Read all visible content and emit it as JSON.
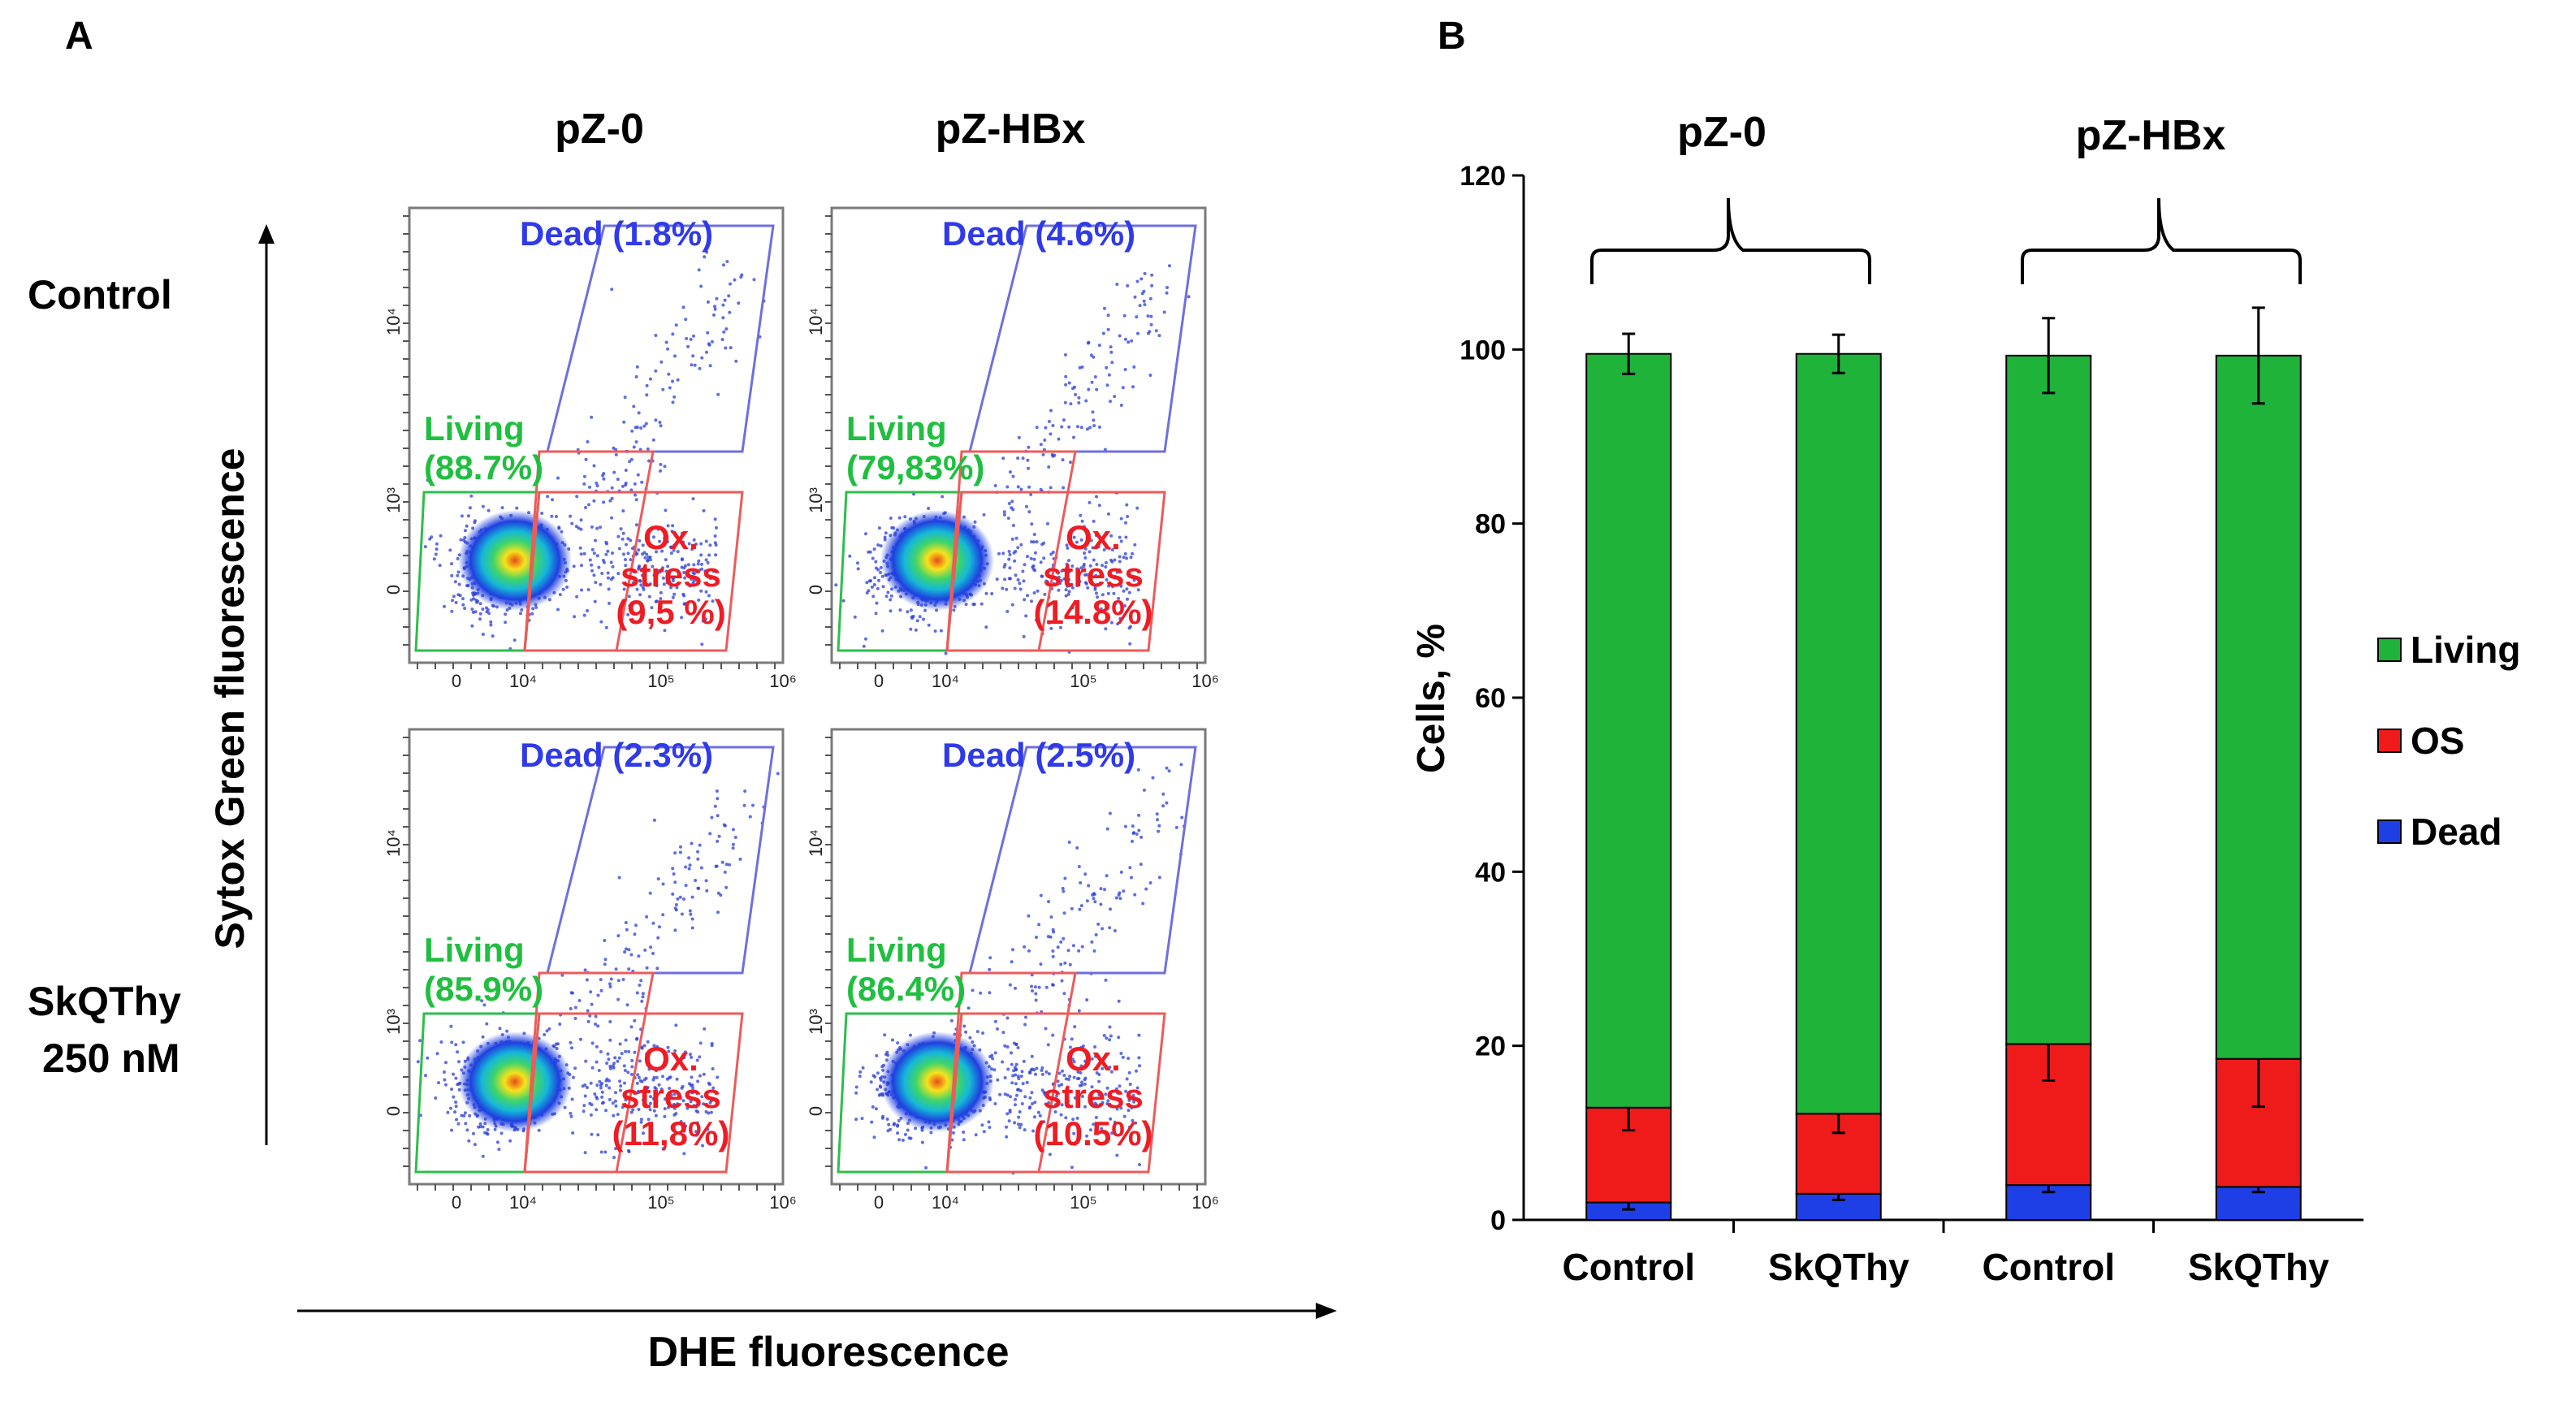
{
  "panel_a": {
    "letter": "A",
    "col_headers": [
      "pZ-0",
      "pZ-HBx"
    ],
    "row_labels": [
      {
        "lines": [
          "Control"
        ]
      },
      {
        "lines": [
          "SkQThy",
          "250 nM"
        ]
      }
    ],
    "y_axis_label": "Sytox Green fluorescence",
    "x_axis_label": "DHE fluorescence",
    "y_ticks": [
      "0",
      "10³",
      "10⁴"
    ],
    "x_ticks": [
      "0",
      "10⁴",
      "10⁵",
      "10⁶"
    ],
    "colors": {
      "dead": "#2f3ae8",
      "living": "#1fbf3f",
      "ox": "#ee1c24"
    },
    "plots": [
      {
        "dead": "Dead (1.8%)",
        "living": [
          "Living",
          "(88.7%)"
        ],
        "ox": [
          "Ox.",
          "stress",
          "(9,5 %)"
        ]
      },
      {
        "dead": "Dead (4.6%)",
        "living": [
          "Living",
          "(79,83%)"
        ],
        "ox": [
          "Ox.",
          "stress",
          "(14.8%)"
        ]
      },
      {
        "dead": "Dead (2.3%)",
        "living": [
          "Living",
          "(85.9%)"
        ],
        "ox": [
          "Ox.",
          "stress",
          "(11,8%)"
        ]
      },
      {
        "dead": "Dead (2.5%)",
        "living": [
          "Living",
          "(86.4%)"
        ],
        "ox": [
          "Ox.",
          "stress",
          "(10.5%)"
        ]
      }
    ]
  },
  "chart_data": {
    "type": "bar",
    "stacked": true,
    "panel_letter": "B",
    "group_labels": [
      "pZ-0",
      "pZ-HBx"
    ],
    "categories": [
      "Control",
      "SkQThy",
      "Control",
      "SkQThy"
    ],
    "ylabel": "Cells, %",
    "ylim": [
      0,
      120
    ],
    "yticks": [
      0,
      20,
      40,
      60,
      80,
      100,
      120
    ],
    "legend_position": "right",
    "series": [
      {
        "name": "Dead",
        "color": "#1f3fe6",
        "values": [
          2.0,
          3.0,
          4.0,
          3.8
        ],
        "err": [
          0.8,
          0.7,
          0.8,
          0.6
        ]
      },
      {
        "name": "OS",
        "color": "#ef1b1b",
        "values": [
          10.9,
          9.2,
          16.2,
          14.7
        ],
        "err": [
          2.6,
          2.2,
          4.2,
          5.5
        ]
      },
      {
        "name": "Living",
        "color": "#1fb339",
        "values": [
          86.6,
          87.3,
          79.1,
          80.8
        ],
        "err": [
          2.3,
          2.2,
          4.3,
          5.5
        ]
      }
    ],
    "legend_order": [
      "Living",
      "OS",
      "Dead"
    ]
  }
}
